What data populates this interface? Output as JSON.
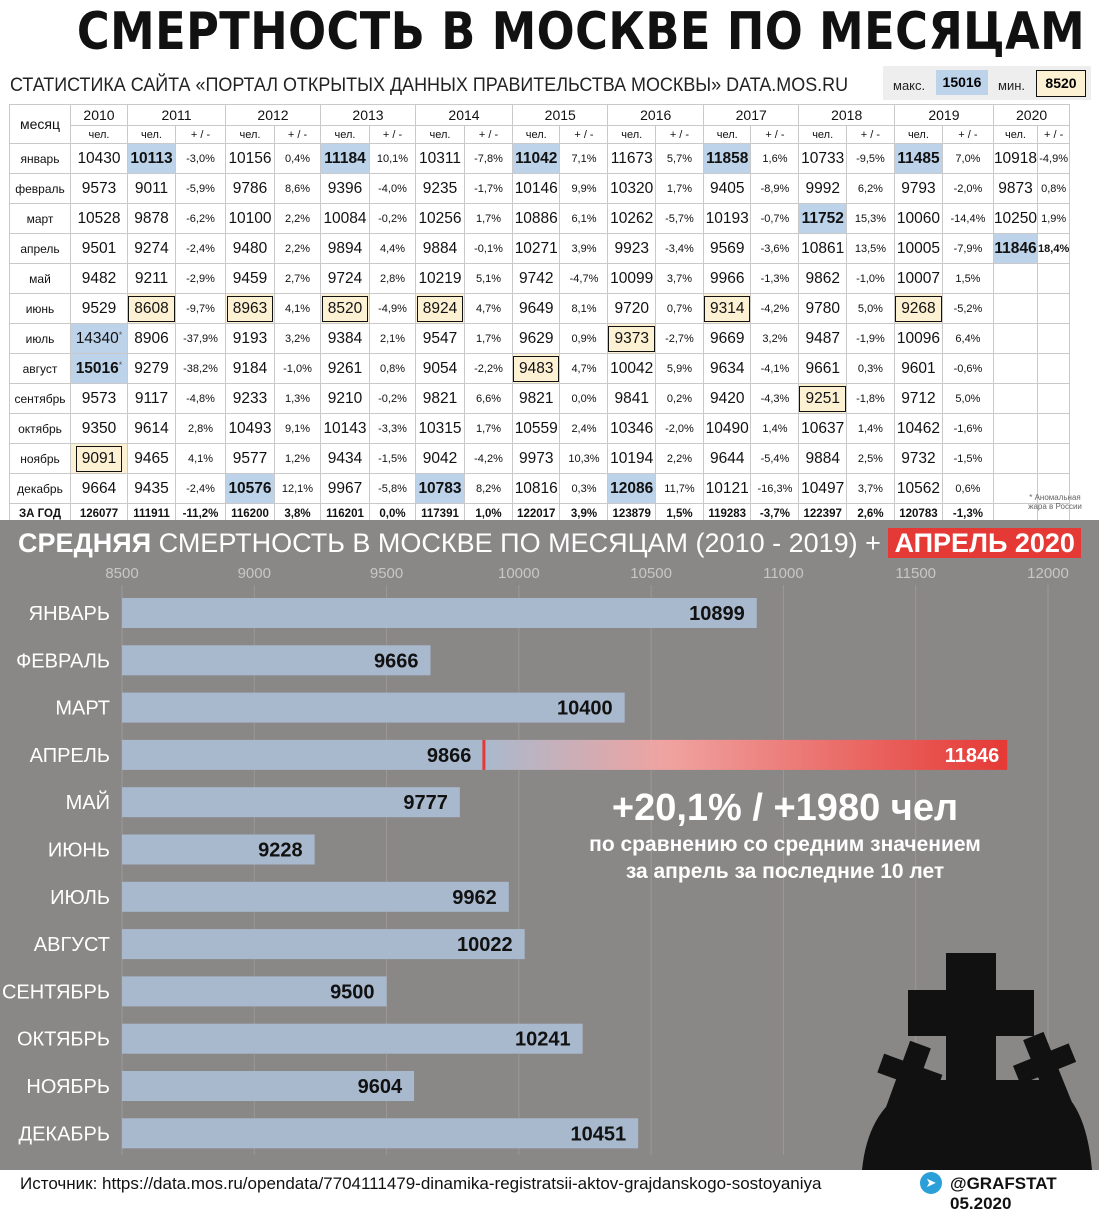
{
  "title": "СМЕРТНОСТЬ В МОСКВЕ ПО МЕСЯЦАМ",
  "subtitle": "СТАТИСТИКА САЙТА «ПОРТАЛ ОТКРЫТЫХ ДАННЫХ ПРАВИТЕЛЬСТВА МОСКВЫ» DATA.MOS.RU",
  "legend": {
    "max_label": "макс.",
    "max_value": "15016",
    "min_label": "мин.",
    "min_value": "8520",
    "max_color": "#bdd3ea",
    "min_color": "#fdf1d4"
  },
  "table": {
    "month_header": "месяц",
    "col_people": "чел.",
    "col_delta": "+ / -",
    "years": [
      "2010",
      "2011",
      "2012",
      "2013",
      "2014",
      "2015",
      "2016",
      "2017",
      "2018",
      "2019",
      "2020"
    ],
    "rows": [
      {
        "month": "январь",
        "cells": [
          [
            "10430",
            ""
          ],
          [
            "10113",
            "-3,0%"
          ],
          [
            "10156",
            "0,4%"
          ],
          [
            "11184",
            "10,1%"
          ],
          [
            "10311",
            "-7,8%"
          ],
          [
            "11042",
            "7,1%"
          ],
          [
            "11673",
            "5,7%"
          ],
          [
            "11858",
            "1,6%"
          ],
          [
            "10733",
            "-9,5%"
          ],
          [
            "11485",
            "7,0%"
          ],
          [
            "10918",
            "-4,9%"
          ]
        ]
      },
      {
        "month": "февраль",
        "cells": [
          [
            "9573",
            ""
          ],
          [
            "9011",
            "-5,9%"
          ],
          [
            "9786",
            "8,6%"
          ],
          [
            "9396",
            "-4,0%"
          ],
          [
            "9235",
            "-1,7%"
          ],
          [
            "10146",
            "9,9%"
          ],
          [
            "10320",
            "1,7%"
          ],
          [
            "9405",
            "-8,9%"
          ],
          [
            "9992",
            "6,2%"
          ],
          [
            "9793",
            "-2,0%"
          ],
          [
            "9873",
            "0,8%"
          ]
        ]
      },
      {
        "month": "март",
        "cells": [
          [
            "10528",
            ""
          ],
          [
            "9878",
            "-6,2%"
          ],
          [
            "10100",
            "2,2%"
          ],
          [
            "10084",
            "-0,2%"
          ],
          [
            "10256",
            "1,7%"
          ],
          [
            "10886",
            "6,1%"
          ],
          [
            "10262",
            "-5,7%"
          ],
          [
            "10193",
            "-0,7%"
          ],
          [
            "11752",
            "15,3%"
          ],
          [
            "10060",
            "-14,4%"
          ],
          [
            "10250",
            "1,9%"
          ]
        ]
      },
      {
        "month": "апрель",
        "cells": [
          [
            "9501",
            ""
          ],
          [
            "9274",
            "-2,4%"
          ],
          [
            "9480",
            "2,2%"
          ],
          [
            "9894",
            "4,4%"
          ],
          [
            "9884",
            "-0,1%"
          ],
          [
            "10271",
            "3,9%"
          ],
          [
            "9923",
            "-3,4%"
          ],
          [
            "9569",
            "-3,6%"
          ],
          [
            "10861",
            "13,5%"
          ],
          [
            "10005",
            "-7,9%"
          ],
          [
            "11846",
            "18,4%"
          ]
        ]
      },
      {
        "month": "май",
        "cells": [
          [
            "9482",
            ""
          ],
          [
            "9211",
            "-2,9%"
          ],
          [
            "9459",
            "2,7%"
          ],
          [
            "9724",
            "2,8%"
          ],
          [
            "10219",
            "5,1%"
          ],
          [
            "9742",
            "-4,7%"
          ],
          [
            "10099",
            "3,7%"
          ],
          [
            "9966",
            "-1,3%"
          ],
          [
            "9862",
            "-1,0%"
          ],
          [
            "10007",
            "1,5%"
          ],
          [
            "",
            ""
          ]
        ]
      },
      {
        "month": "июнь",
        "cells": [
          [
            "9529",
            ""
          ],
          [
            "8608",
            "-9,7%"
          ],
          [
            "8963",
            "4,1%"
          ],
          [
            "8520",
            "-4,9%"
          ],
          [
            "8924",
            "4,7%"
          ],
          [
            "9649",
            "8,1%"
          ],
          [
            "9720",
            "0,7%"
          ],
          [
            "9314",
            "-4,2%"
          ],
          [
            "9780",
            "5,0%"
          ],
          [
            "9268",
            "-5,2%"
          ],
          [
            "",
            ""
          ]
        ]
      },
      {
        "month": "июль",
        "cells": [
          [
            "14340",
            ""
          ],
          [
            "8906",
            "-37,9%"
          ],
          [
            "9193",
            "3,2%"
          ],
          [
            "9384",
            "2,1%"
          ],
          [
            "9547",
            "1,7%"
          ],
          [
            "9629",
            "0,9%"
          ],
          [
            "9373",
            "-2,7%"
          ],
          [
            "9669",
            "3,2%"
          ],
          [
            "9487",
            "-1,9%"
          ],
          [
            "10096",
            "6,4%"
          ],
          [
            "",
            ""
          ]
        ]
      },
      {
        "month": "август",
        "cells": [
          [
            "15016",
            ""
          ],
          [
            "9279",
            "-38,2%"
          ],
          [
            "9184",
            "-1,0%"
          ],
          [
            "9261",
            "0,8%"
          ],
          [
            "9054",
            "-2,2%"
          ],
          [
            "9483",
            "4,7%"
          ],
          [
            "10042",
            "5,9%"
          ],
          [
            "9634",
            "-4,1%"
          ],
          [
            "9661",
            "0,3%"
          ],
          [
            "9601",
            "-0,6%"
          ],
          [
            "",
            ""
          ]
        ]
      },
      {
        "month": "сентябрь",
        "cells": [
          [
            "9573",
            ""
          ],
          [
            "9117",
            "-4,8%"
          ],
          [
            "9233",
            "1,3%"
          ],
          [
            "9210",
            "-0,2%"
          ],
          [
            "9821",
            "6,6%"
          ],
          [
            "9821",
            "0,0%"
          ],
          [
            "9841",
            "0,2%"
          ],
          [
            "9420",
            "-4,3%"
          ],
          [
            "9251",
            "-1,8%"
          ],
          [
            "9712",
            "5,0%"
          ],
          [
            "",
            ""
          ]
        ]
      },
      {
        "month": "октябрь",
        "cells": [
          [
            "9350",
            ""
          ],
          [
            "9614",
            "2,8%"
          ],
          [
            "10493",
            "9,1%"
          ],
          [
            "10143",
            "-3,3%"
          ],
          [
            "10315",
            "1,7%"
          ],
          [
            "10559",
            "2,4%"
          ],
          [
            "10346",
            "-2,0%"
          ],
          [
            "10490",
            "1,4%"
          ],
          [
            "10637",
            "1,4%"
          ],
          [
            "10462",
            "-1,6%"
          ],
          [
            "",
            ""
          ]
        ]
      },
      {
        "month": "ноябрь",
        "cells": [
          [
            "9091",
            ""
          ],
          [
            "9465",
            "4,1%"
          ],
          [
            "9577",
            "1,2%"
          ],
          [
            "9434",
            "-1,5%"
          ],
          [
            "9042",
            "-4,2%"
          ],
          [
            "9973",
            "10,3%"
          ],
          [
            "10194",
            "2,2%"
          ],
          [
            "9644",
            "-5,4%"
          ],
          [
            "9884",
            "2,5%"
          ],
          [
            "9732",
            "-1,5%"
          ],
          [
            "",
            ""
          ]
        ]
      },
      {
        "month": "декабрь",
        "cells": [
          [
            "9664",
            ""
          ],
          [
            "9435",
            "-2,4%"
          ],
          [
            "10576",
            "12,1%"
          ],
          [
            "9967",
            "-5,8%"
          ],
          [
            "10783",
            "8,2%"
          ],
          [
            "10816",
            "0,3%"
          ],
          [
            "12086",
            "11,7%"
          ],
          [
            "10121",
            "-16,3%"
          ],
          [
            "10497",
            "3,7%"
          ],
          [
            "10562",
            "0,6%"
          ],
          [
            "",
            ""
          ]
        ]
      }
    ],
    "total": {
      "label": "ЗА ГОД",
      "cells": [
        [
          "126077",
          ""
        ],
        [
          "111911",
          "-11,2%"
        ],
        [
          "116200",
          "3,8%"
        ],
        [
          "116201",
          "0,0%"
        ],
        [
          "117391",
          "1,0%"
        ],
        [
          "122017",
          "3,9%"
        ],
        [
          "123879",
          "1,5%"
        ],
        [
          "119283",
          "-3,7%"
        ],
        [
          "122397",
          "2,6%"
        ],
        [
          "120783",
          "-1,3%"
        ],
        [
          "",
          ""
        ]
      ]
    },
    "asterisk": "*",
    "footnote": "* Аномальная жара в России"
  },
  "chart_data": {
    "type": "bar",
    "orientation": "horizontal",
    "title_bold": "СРЕДНЯЯ",
    "title_rest": "СМЕРТНОСТЬ В МОСКВЕ ПО МЕСЯЦАМ (2010 - 2019) +",
    "title_highlight": "АПРЕЛЬ 2020",
    "categories": [
      "ЯНВАРЬ",
      "ФЕВРАЛЬ",
      "МАРТ",
      "АПРЕЛЬ",
      "МАЙ",
      "ИЮНЬ",
      "ИЮЛЬ",
      "АВГУСТ",
      "СЕНТЯБРЬ",
      "ОКТЯБРЬ",
      "НОЯБРЬ",
      "ДЕКАБРЬ"
    ],
    "values": [
      10899,
      9666,
      10400,
      9866,
      9777,
      9228,
      9962,
      10022,
      9500,
      10241,
      9604,
      10451
    ],
    "highlight": {
      "category": "АПРЕЛЬ",
      "value": 11846,
      "color": "#e53935"
    },
    "xlim": [
      8500,
      12000
    ],
    "xticks": [
      8500,
      9000,
      9500,
      10000,
      10500,
      11000,
      11500,
      12000
    ],
    "bar_color": "#a9b9cd",
    "annotation_main": "+20,1%  /  +1980 чел",
    "annotation_sub1": "по сравнению со средним значением",
    "annotation_sub2": "за апрель за последние 10 лет"
  },
  "footer": {
    "source": "Источник: https://data.mos.ru/opendata/7704111479-dinamika-registratsii-aktov-grajdanskogo-sostoyaniya",
    "brand": "@GRAFSTAT 05.2020",
    "telegram_icon": "telegram-icon"
  }
}
